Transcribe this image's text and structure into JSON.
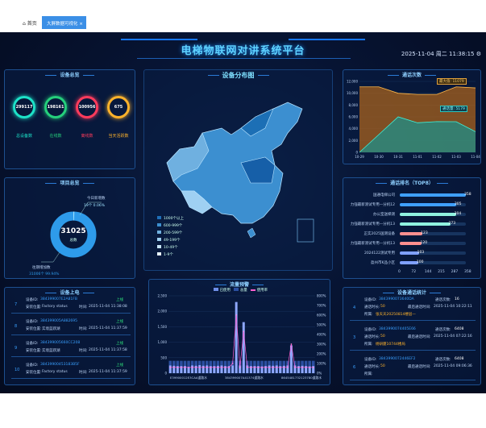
{
  "nav": {
    "home": "首页",
    "tab": "大屏数据可视化",
    "tab_close": "×"
  },
  "header": {
    "title": "电梯物联网对讲系统平台",
    "datetime": "2025-11-04 周二 11:38:15"
  },
  "overview": {
    "title": "设备总览",
    "items": [
      {
        "value": "299117",
        "label": "总设备数",
        "color": "#1de2c8"
      },
      {
        "value": "198161",
        "label": "在线数",
        "color": "#25d07c"
      },
      {
        "value": "100956",
        "label": "离线数",
        "color": "#ff3b5c"
      },
      {
        "value": "675",
        "label": "当天活跃数",
        "color": "#ffb32b"
      }
    ]
  },
  "project": {
    "title": "项目总览",
    "total": "31025",
    "total_label": "总数",
    "today_label": "今日新增数",
    "today_value": "19个",
    "today_pct": "0.06%",
    "history_label": "往期增加数",
    "history_value": "31006个",
    "history_pct": "99.94%"
  },
  "map": {
    "title": "设备分布图",
    "legend": [
      "1000个以上",
      "600-999个",
      "200-599个",
      "49-199个",
      "10-49个",
      "1-9个"
    ]
  },
  "calls": {
    "title": "通话次数",
    "tooltip1": "最大值: 11079",
    "tooltip2": "通话量: 5179",
    "y_ticks": [
      "12,000",
      "10,000",
      "8,000",
      "6,000",
      "4,000",
      "2,000",
      "0"
    ],
    "x_ticks": [
      "10-29",
      "10-30",
      "10-31",
      "11-01",
      "11-02",
      "11-03",
      "11-04"
    ]
  },
  "ranking": {
    "title": "通话排名（TOP8）",
    "rows": [
      {
        "name": "国通电梯公司",
        "value": "358"
      },
      {
        "name": "力强最新测试专用—分机12",
        "value": "305"
      },
      {
        "name": "办公室送梯测",
        "value": "304"
      },
      {
        "name": "力强最新测试专用—分机13",
        "value": "273"
      },
      {
        "name": "正实2025国测设备",
        "value": "123"
      },
      {
        "name": "力强最新测试专用—分机13",
        "value": "120"
      },
      {
        "name": "2024122测试专用",
        "value": "103"
      },
      {
        "name": "盈州市K品小区",
        "value": "100"
      }
    ],
    "ticks": [
      "0",
      "72",
      "144",
      "215",
      "287",
      "358"
    ]
  },
  "uplink": {
    "title": "设备上电",
    "rows": [
      {
        "idx": "7",
        "id_label": "设备ID:",
        "id": "384399007E2A81FB",
        "status": "上线",
        "loc_label": "安装位置:",
        "loc": "Factory status",
        "time_label": "时间:",
        "time": "2025-11-04 11:38:08"
      },
      {
        "idx": "8",
        "id_label": "设备ID:",
        "id": "384399005A882695",
        "status": "上线",
        "loc_label": "安装位置:",
        "loc": "实境蓝跃湖",
        "time_label": "时间:",
        "time": "2025-11-04 11:37:59"
      },
      {
        "idx": "9",
        "id_label": "设备ID:",
        "id": "384399005660CC208",
        "status": "上线",
        "loc_label": "安装位置:",
        "loc": "实境蓝跃湖",
        "time_label": "时间:",
        "time": "2025-11-04 11:37:58"
      },
      {
        "idx": "10",
        "id_label": "设备ID:",
        "id": "38439900453183B5F",
        "status": "上线",
        "loc_label": "安装位置:",
        "loc": "Factory status",
        "time_label": "时间:",
        "time": "2025-11-04 11:37:59"
      }
    ]
  },
  "traffic": {
    "title": "流量预警",
    "legend": [
      "已使用",
      "总量",
      "使用率"
    ],
    "y_ticks": [
      "2,500",
      "2,000",
      "1,500",
      "1,000",
      "500",
      "0"
    ],
    "y2_ticks": [
      "800%",
      "700%",
      "600%",
      "500%",
      "400%",
      "300%",
      "200%",
      "100%",
      "0%"
    ],
    "x_ticks": [
      "E39900012E3CAA道路水",
      "384399007A41374道路水",
      "8645481732123780道路水"
    ]
  },
  "callstats": {
    "title": "设备通话统计",
    "rows": [
      {
        "idx": "4",
        "id_label": "设备ID:",
        "id": "3843990073640DA",
        "count_label": "通话次数:",
        "count": "16",
        "cat_label": "通话时长:",
        "cat": "50",
        "last_label": "最后通话时间:",
        "last": "2025-11-04 10:22:11",
        "loc_label": "所属:",
        "loc": "张天天20250814楼层—"
      },
      {
        "idx": "3",
        "id_label": "设备ID:",
        "id": "3843990074405E66",
        "count_label": "通话次数:",
        "count": "6408",
        "cat_label": "通话时长:",
        "cat": "50",
        "last_label": "最后通话时间:",
        "last": "2025-11-04 07:22:16",
        "loc_label": "所属:",
        "loc": "杨研厦10744楼局"
      },
      {
        "idx": "6",
        "id_label": "设备ID:",
        "id": "3843990072446EF2",
        "count_label": "通话次数:",
        "count": "6408",
        "cat_label": "通话时长:",
        "cat": "50",
        "last_label": "最后通话时间:",
        "last": "2025-11-04 09:06:36",
        "loc_label": "所属:",
        "loc": ""
      }
    ]
  },
  "chart_data": [
    {
      "type": "area",
      "title": "通话次数",
      "x": [
        "10-29",
        "10-30",
        "10-31",
        "11-01",
        "11-02",
        "11-03",
        "11-04"
      ],
      "series": [
        {
          "values": [
            11079,
            11079,
            10000,
            9800,
            9800,
            11079,
            10900
          ]
        },
        {
          "values": [
            0,
            3000,
            6000,
            5000,
            5200,
            5179,
            3500
          ]
        }
      ],
      "ylim": [
        0,
        12000
      ]
    },
    {
      "type": "bar",
      "title": "流量预警",
      "ylim": [
        0,
        2500
      ],
      "series": [
        {
          "name": "已使用",
          "values": [
            250,
            240,
            230,
            230,
            230,
            200,
            250,
            240,
            260,
            240,
            250,
            230,
            230,
            240,
            250,
            230,
            230,
            250,
            2300,
            250,
            1650,
            250,
            230,
            230,
            230,
            220,
            230,
            250,
            240,
            250,
            230,
            240,
            250,
            900,
            250,
            230,
            240,
            230,
            220,
            230
          ]
        },
        {
          "name": "总量",
          "values": [
            400,
            400,
            400,
            400,
            400,
            400,
            400,
            400,
            400,
            400,
            400,
            400,
            400,
            400,
            400,
            400,
            400,
            400,
            400,
            400,
            400,
            400,
            400,
            400,
            400,
            400,
            400,
            400,
            400,
            400,
            400,
            400,
            400,
            400,
            400,
            400,
            400,
            400,
            400,
            400
          ]
        },
        {
          "name": "使用率",
          "values": [
            60,
            60,
            60,
            60,
            60,
            60,
            60,
            60,
            60,
            60,
            60,
            60,
            60,
            60,
            60,
            60,
            60,
            100,
            600,
            60,
            430,
            60,
            60,
            60,
            60,
            60,
            60,
            60,
            60,
            60,
            60,
            60,
            60,
            300,
            60,
            60,
            60,
            60,
            60,
            60
          ]
        }
      ]
    }
  ]
}
